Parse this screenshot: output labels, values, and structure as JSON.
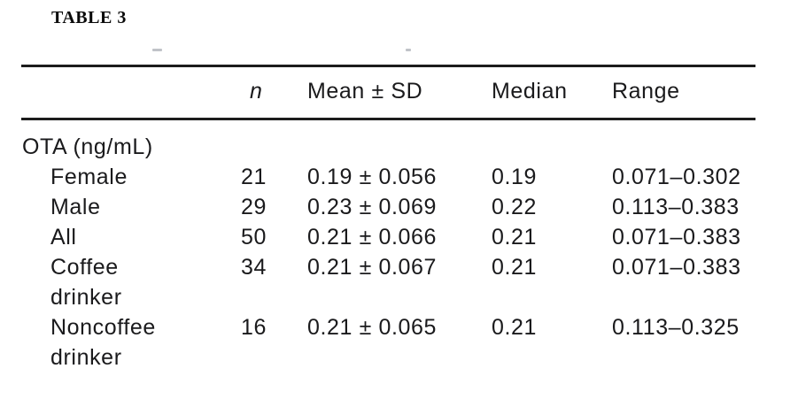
{
  "page": {
    "table_label": "TABLE 3"
  },
  "table": {
    "columns": {
      "n": "n",
      "mean_sd": "Mean ± SD",
      "median": "Median",
      "range": "Range"
    },
    "group_header": "OTA (ng/mL)",
    "rows": [
      {
        "label": "Female",
        "n": "21",
        "mean_sd": "0.19 ± 0.056",
        "median": "0.19",
        "range": "0.071–0.302"
      },
      {
        "label": "Male",
        "n": "29",
        "mean_sd": "0.23 ± 0.069",
        "median": "0.22",
        "range": "0.113–0.383"
      },
      {
        "label": "All",
        "n": "50",
        "mean_sd": "0.21 ± 0.066",
        "median": "0.21",
        "range": "0.071–0.383"
      },
      {
        "label": "Coffee\ndrinker",
        "n": "34",
        "mean_sd": "0.21 ± 0.067",
        "median": "0.21",
        "range": "0.071–0.383"
      },
      {
        "label": "Noncoffee\ndrinker",
        "n": "16",
        "mean_sd": "0.21 ± 0.065",
        "median": "0.21",
        "range": "0.113–0.325"
      }
    ]
  }
}
